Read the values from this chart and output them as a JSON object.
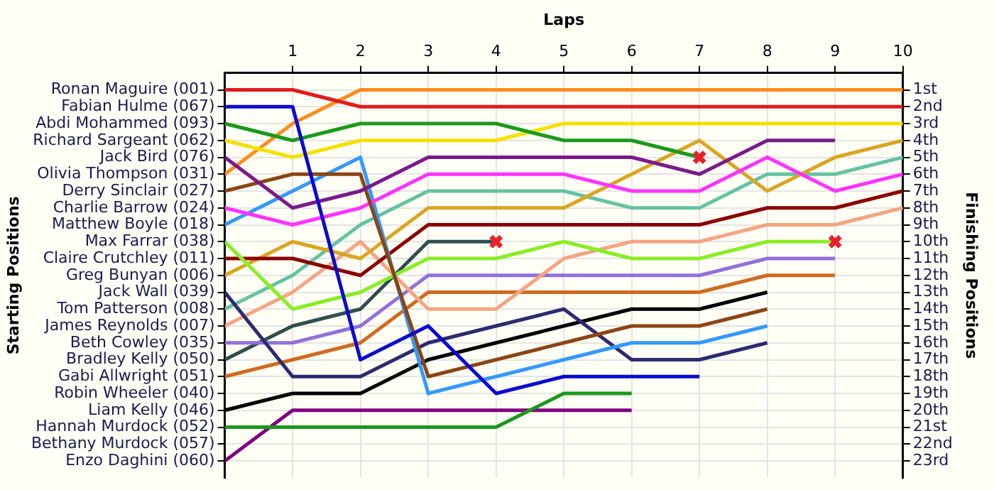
{
  "chart_data": {
    "type": "line",
    "xlabel": "Laps",
    "y2label": "Finishing Positions",
    "annotations": [
      "Starting Positions"
    ],
    "x": [
      0,
      1,
      2,
      3,
      4,
      5,
      6,
      7,
      8,
      9,
      10
    ],
    "xlim": [
      0,
      10
    ],
    "xticks": [
      1,
      2,
      3,
      4,
      5,
      6,
      7,
      8,
      9,
      10
    ],
    "y_categories": [
      "Ronan Maguire (001)",
      "Fabian Hulme (067)",
      "Abdi Mohammed (093)",
      "Richard Sargeant (062)",
      "Jack Bird (076)",
      "Olivia Thompson (031)",
      "Derry Sinclair (027)",
      "Charlie Barrow (024)",
      "Matthew Boyle (018)",
      "Max Farrar (038)",
      "Claire Crutchley (011)",
      "Greg Bunyan (006)",
      "Jack Wall (039)",
      "Tom Patterson (008)",
      "James Reynolds (007)",
      "Beth Cowley (035)",
      "Bradley Kelly (050)",
      "Gabi Allwright (051)",
      "Robin Wheeler (040)",
      "Liam Kelly (046)",
      "Hannah Murdock (052)",
      "Bethany Murdock (057)",
      "Enzo Daghini (060)"
    ],
    "y2lim": [
      24,
      0
    ],
    "y2ticks": [
      {
        "value": 1,
        "label": "1st"
      },
      {
        "value": 2,
        "label": "2nd"
      },
      {
        "value": 3,
        "label": "3rd"
      },
      {
        "value": 4,
        "label": "4th"
      },
      {
        "value": 5,
        "label": "5th"
      },
      {
        "value": 6,
        "label": "6th"
      },
      {
        "value": 7,
        "label": "7th"
      },
      {
        "value": 8,
        "label": "8th"
      },
      {
        "value": 9,
        "label": "9th"
      },
      {
        "value": 10,
        "label": "10th"
      },
      {
        "value": 11,
        "label": "11th"
      },
      {
        "value": 12,
        "label": "12th"
      },
      {
        "value": 13,
        "label": "13th"
      },
      {
        "value": 14,
        "label": "14th"
      },
      {
        "value": 15,
        "label": "15th"
      },
      {
        "value": 16,
        "label": "16th"
      },
      {
        "value": 17,
        "label": "17th"
      },
      {
        "value": 18,
        "label": "18th"
      },
      {
        "value": 19,
        "label": "19th"
      },
      {
        "value": 20,
        "label": "20th"
      },
      {
        "value": 21,
        "label": "21st"
      },
      {
        "value": 22,
        "label": "22nd"
      },
      {
        "value": 23,
        "label": "23rd"
      }
    ],
    "grid": true,
    "legend": false,
    "marker": "none",
    "line_style": "solid",
    "series": [
      {
        "axis": "y2",
        "color": "#e31a1c",
        "values": [
          1,
          1,
          2,
          2,
          2,
          2,
          2,
          2,
          2,
          2,
          2
        ]
      },
      {
        "axis": "y2",
        "color": "#0a0ad0",
        "values": [
          2,
          2,
          17,
          15,
          19,
          18,
          18,
          18,
          null,
          null,
          null
        ]
      },
      {
        "axis": "y2",
        "color": "#1a9a1a",
        "values": [
          3,
          4,
          3,
          3,
          3,
          4,
          4,
          5,
          null,
          null,
          null
        ]
      },
      {
        "axis": "y2",
        "color": "#f5e000",
        "values": [
          4,
          5,
          4,
          4,
          4,
          3,
          3,
          3,
          3,
          3,
          3
        ]
      },
      {
        "axis": "y2",
        "color": "#7a1a8a",
        "values": [
          5,
          8,
          7,
          5,
          5,
          5,
          5,
          6,
          4,
          4,
          null
        ]
      },
      {
        "axis": "y2",
        "color": "#ff8c1a",
        "values": [
          6,
          3,
          1,
          1,
          1,
          1,
          1,
          1,
          1,
          1,
          1
        ]
      },
      {
        "axis": "y2",
        "color": "#8b4513",
        "values": [
          7,
          6,
          6,
          18,
          17,
          16,
          15,
          15,
          14,
          null,
          null
        ]
      },
      {
        "axis": "y2",
        "color": "#ff33ff",
        "values": [
          8,
          9,
          8,
          6,
          6,
          6,
          7,
          7,
          5,
          7,
          6
        ]
      },
      {
        "axis": "y2",
        "color": "#3399ff",
        "values": [
          9,
          7,
          5,
          19,
          18,
          17,
          16,
          16,
          15,
          null,
          null
        ]
      },
      {
        "axis": "y2",
        "color": "#88ee22",
        "values": [
          10,
          14,
          13,
          11,
          11,
          10,
          11,
          11,
          10,
          10,
          null
        ]
      },
      {
        "axis": "y2",
        "color": "#8b0000",
        "values": [
          11,
          11,
          12,
          9,
          9,
          9,
          9,
          9,
          8,
          8,
          7
        ]
      },
      {
        "axis": "y2",
        "color": "#daa520",
        "values": [
          12,
          10,
          11,
          8,
          8,
          8,
          6,
          4,
          7,
          5,
          4
        ]
      },
      {
        "axis": "y2",
        "color": "#2b2b70",
        "values": [
          13,
          18,
          18,
          16,
          15,
          14,
          17,
          17,
          16,
          null,
          null
        ]
      },
      {
        "axis": "y2",
        "color": "#66c2a5",
        "values": [
          14,
          12,
          9,
          7,
          7,
          7,
          8,
          8,
          6,
          6,
          5
        ]
      },
      {
        "axis": "y2",
        "color": "#f4a582",
        "values": [
          15,
          13,
          10,
          14,
          14,
          11,
          10,
          10,
          9,
          9,
          8
        ]
      },
      {
        "axis": "y2",
        "color": "#9370db",
        "values": [
          16,
          16,
          15,
          12,
          12,
          12,
          12,
          12,
          11,
          11,
          null
        ]
      },
      {
        "axis": "y2",
        "color": "#2f4f4f",
        "values": [
          17,
          15,
          14,
          10,
          10,
          null,
          null,
          null,
          null,
          null,
          null
        ]
      },
      {
        "axis": "y2",
        "color": "#d2691e",
        "values": [
          18,
          17,
          16,
          13,
          13,
          13,
          13,
          13,
          12,
          12,
          null
        ]
      },
      {
        "axis": "y2",
        "color": "#000000",
        "values": [
          20,
          19,
          19,
          17,
          16,
          15,
          14,
          14,
          13,
          null,
          null
        ]
      },
      {
        "axis": "y2",
        "color": "#1a9a1a",
        "values": [
          21,
          21,
          21,
          21,
          21,
          19,
          19,
          null,
          null,
          null,
          null
        ]
      },
      {
        "axis": "y2",
        "color": "#800080",
        "values": [
          23,
          20,
          20,
          20,
          20,
          20,
          20,
          null,
          null,
          null,
          null
        ]
      },
      {
        "type": "scatter",
        "axis": "y2",
        "marker": "cross",
        "color": "#e8202a",
        "x": [
          7,
          4,
          9
        ],
        "values": [
          5,
          10,
          10
        ]
      }
    ]
  }
}
